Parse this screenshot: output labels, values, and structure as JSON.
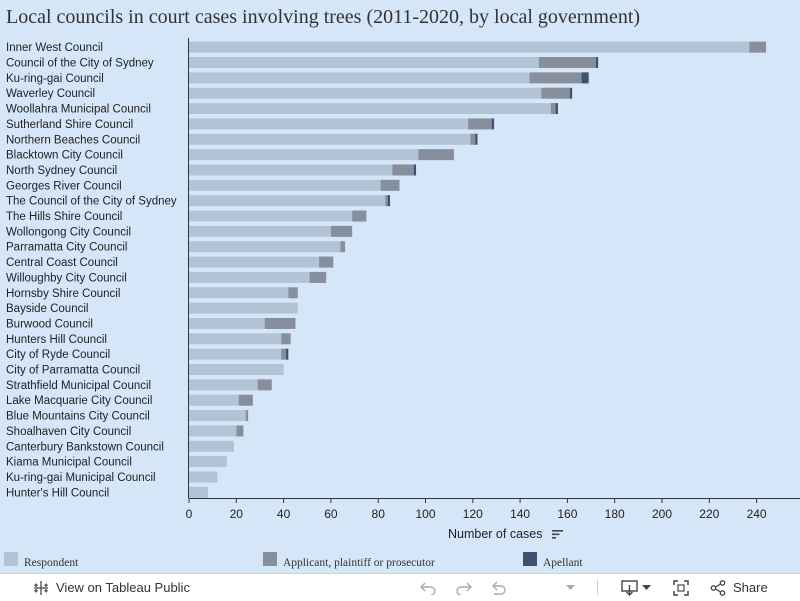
{
  "chart_data": {
    "type": "bar",
    "orientation": "horizontal",
    "stacked": true,
    "title": "Local councils in court cases involving trees (2011-2020, by local government)",
    "xlabel": "Number of cases",
    "xlim": [
      0,
      260
    ],
    "xticks": [
      "0",
      "20",
      "40",
      "60",
      "80",
      "100",
      "120",
      "140",
      "160",
      "180",
      "200",
      "220",
      "240"
    ],
    "grid": false,
    "legend_position": "bottom",
    "colors": {
      "Respondent": "#b3c3d6",
      "Applicant, plaintiff or prosecutor": "#878e9c",
      "Apellant": "#3d5271"
    },
    "categories": [
      "Inner West Council",
      "Council of the City of Sydney",
      "Ku-ring-gai Council",
      "Waverley Council",
      "Woollahra Municipal Council",
      "Sutherland Shire Council",
      "Northern Beaches Council",
      "Blacktown City Council",
      "North Sydney Council",
      "Georges River Council",
      "The Council of the City of Sydney",
      "The Hills Shire Council",
      "Wollongong City Council",
      "Parramatta City Council",
      "Central Coast Council",
      "Willoughby City Council",
      "Hornsby Shire Council",
      "Bayside Council",
      "Burwood Council",
      "Hunters Hill Council",
      "City of Ryde Council",
      "City of Parramatta Council",
      "Strathfield Municipal Council",
      "Lake Macquarie City Council",
      "Blue Mountains City Council",
      "Shoalhaven City Council",
      "Canterbury Bankstown Council",
      "Kiama Municipal Council",
      "Ku-ring-gai Municipal Council",
      "Hunter's Hill Council"
    ],
    "series": [
      {
        "name": "Respondent",
        "values": [
          237,
          148,
          144,
          149,
          153,
          118,
          119,
          97,
          86,
          81,
          83,
          69,
          60,
          64,
          55,
          51,
          42,
          46,
          32,
          39,
          39,
          40,
          29,
          21,
          24,
          20,
          19,
          16,
          12,
          8
        ]
      },
      {
        "name": "Applicant, plaintiff or prosecutor",
        "values": [
          7,
          24,
          22,
          12,
          2,
          10,
          2,
          15,
          9,
          8,
          1,
          6,
          9,
          2,
          6,
          7,
          4,
          0,
          13,
          4,
          2,
          0,
          6,
          6,
          1,
          3,
          0,
          0,
          0,
          0
        ]
      },
      {
        "name": "Apellant",
        "values": [
          0,
          1,
          3,
          1,
          1,
          1,
          1,
          0,
          1,
          0,
          1,
          0,
          0,
          0,
          0,
          0,
          0,
          0,
          0,
          0,
          1,
          0,
          0,
          0,
          0,
          0,
          0,
          0,
          0,
          0
        ]
      }
    ]
  },
  "toolbar": {
    "view_label": "View on Tableau Public",
    "share_label": "Share",
    "icons": [
      "tableau-logo-icon",
      "undo-icon",
      "redo-icon",
      "revert-icon",
      "download-icon",
      "fullscreen-icon",
      "share-icon"
    ]
  }
}
